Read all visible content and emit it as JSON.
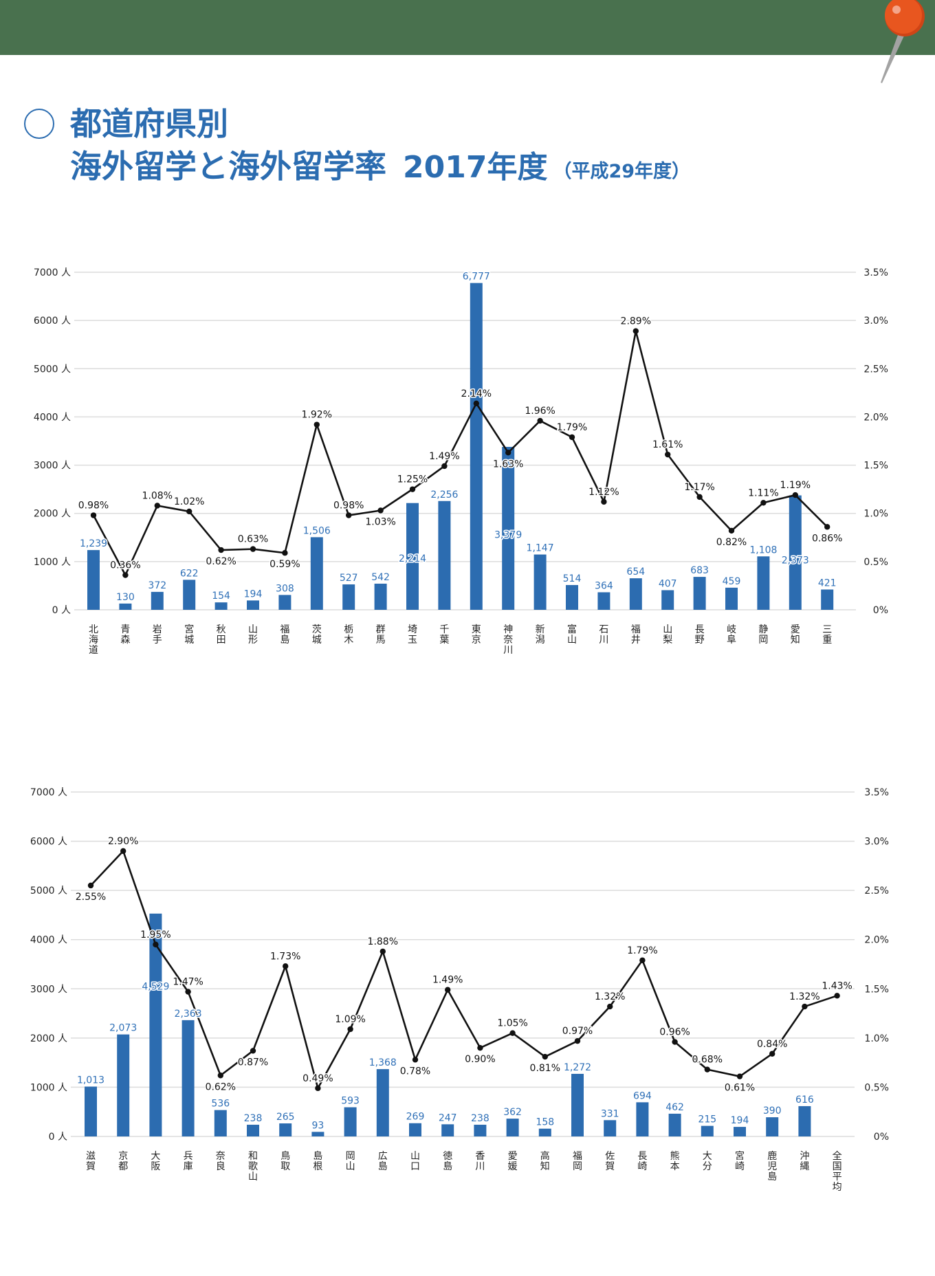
{
  "header": {
    "band_color": "#49714e"
  },
  "pin": {
    "icon": "pushpin-icon",
    "head_color": "#e8561f",
    "head_shadow_color": "#cf4416",
    "highlight_color": "#f4a58a",
    "needle_color": "#a3a3a3"
  },
  "title": {
    "bullet_icon": "circle-outline-icon",
    "line1": "都道府県別",
    "line2_main": "海外留学と海外留学率",
    "line2_year": "2017年度",
    "line2_sub": "（平成29年度）",
    "color": "#2b6cb0"
  },
  "colors": {
    "bar": "#2c6cb0",
    "bar_label": "#2f70b7",
    "line": "#111111",
    "grid": "#dcdcdc"
  },
  "chart_data": [
    {
      "type": "bar+line",
      "title": "都道府県別 海外留学と海外留学率 2017年度（平成29年度）",
      "xlabel": "",
      "ylabel": "",
      "grid": true,
      "legend": null,
      "categories": [
        "北海道",
        "青森",
        "岩手",
        "宮城",
        "秋田",
        "山形",
        "福島",
        "茨城",
        "栃木",
        "群馬",
        "埼玉",
        "千葉",
        "東京",
        "神奈川",
        "新潟",
        "富山",
        "石川",
        "福井",
        "山梨",
        "長野",
        "岐阜",
        "静岡",
        "愛知",
        "三重"
      ],
      "series": [
        {
          "type": "bar",
          "axis": "left",
          "unit": "人",
          "values": [
            1239,
            130,
            372,
            622,
            154,
            194,
            308,
            1506,
            527,
            542,
            2214,
            2256,
            6777,
            3379,
            1147,
            514,
            364,
            654,
            407,
            683,
            459,
            1108,
            2373,
            421
          ],
          "labels": [
            "1,239",
            "130",
            "372",
            "622",
            "154",
            "194",
            "308",
            "1,506",
            "527",
            "542",
            "2,214",
            "2,256",
            "6,777",
            "3,379",
            "1,147",
            "514",
            "364",
            "654",
            "407",
            "683",
            "459",
            "1,108",
            "2,373",
            "421"
          ],
          "label_inside_at": {
            "10": 1070,
            "13": 1560,
            "22": 1035
          }
        },
        {
          "type": "line",
          "axis": "right",
          "unit": "%",
          "values": [
            0.98,
            0.36,
            1.08,
            1.02,
            0.62,
            0.63,
            0.59,
            1.92,
            0.98,
            1.03,
            1.25,
            1.49,
            2.14,
            1.63,
            1.96,
            1.79,
            1.12,
            2.89,
            1.61,
            1.17,
            0.82,
            1.11,
            1.19,
            0.86
          ],
          "labels": [
            "0.98%",
            "0.36%",
            "1.08%",
            "1.02%",
            "0.62%",
            "0.63%",
            "0.59%",
            "1.92%",
            "0.98%",
            "1.03%",
            "1.25%",
            "1.49%",
            "2.14%",
            "1.63%",
            "1.96%",
            "1.79%",
            "1.12%",
            "2.89%",
            "1.61%",
            "1.17%",
            "0.82%",
            "1.11%",
            "1.19%",
            "0.86%"
          ],
          "label_positions": [
            "above",
            "above",
            "above",
            "above",
            "below",
            "above",
            "below",
            "above",
            "above",
            "below",
            "above",
            "above",
            "above",
            "below",
            "above",
            "above",
            "above",
            "above",
            "above",
            "above",
            "below",
            "above",
            "above",
            "below"
          ]
        }
      ],
      "y_left": {
        "min": 0,
        "max": 7000,
        "ticks": [
          0,
          1000,
          2000,
          3000,
          4000,
          5000,
          6000,
          7000
        ],
        "tick_labels": [
          "0 人",
          "1000 人",
          "2000 人",
          "3000 人",
          "4000 人",
          "5000 人",
          "6000 人",
          "7000 人"
        ]
      },
      "y_right": {
        "min": 0,
        "max": 3.5,
        "ticks": [
          0,
          0.5,
          1.0,
          1.5,
          2.0,
          2.5,
          3.0,
          3.5
        ],
        "tick_labels": [
          "0%",
          "0.5%",
          "1.0%",
          "1.5%",
          "2.0%",
          "2.5%",
          "3.0%",
          "3.5%"
        ]
      }
    },
    {
      "type": "bar+line",
      "title": "都道府県別 海外留学と海外留学率 2017年度（平成29年度）",
      "xlabel": "",
      "ylabel": "",
      "grid": true,
      "legend": null,
      "categories": [
        "滋賀",
        "京都",
        "大阪",
        "兵庫",
        "奈良",
        "和歌山",
        "鳥取",
        "島根",
        "岡山",
        "広島",
        "山口",
        "徳島",
        "香川",
        "愛媛",
        "高知",
        "福岡",
        "佐賀",
        "長崎",
        "熊本",
        "大分",
        "宮崎",
        "鹿児島",
        "沖縄",
        "全国平均"
      ],
      "series": [
        {
          "type": "bar",
          "axis": "left",
          "unit": "人",
          "values": [
            1013,
            2073,
            4529,
            2363,
            536,
            238,
            265,
            93,
            593,
            1368,
            269,
            247,
            238,
            362,
            158,
            1272,
            331,
            694,
            462,
            215,
            194,
            390,
            616,
            null
          ],
          "labels": [
            "1,013",
            "2,073",
            "4,529",
            "2,363",
            "536",
            "238",
            "265",
            "93",
            "593",
            "1,368",
            "269",
            "247",
            "238",
            "362",
            "158",
            "1,272",
            "331",
            "694",
            "462",
            "215",
            "194",
            "390",
            "616",
            null
          ],
          "label_inside_at": {
            "2": 3050
          }
        },
        {
          "type": "line",
          "axis": "right",
          "unit": "%",
          "values": [
            2.55,
            2.9,
            1.95,
            1.47,
            0.62,
            0.87,
            1.73,
            0.49,
            1.09,
            1.88,
            0.78,
            1.49,
            0.9,
            1.05,
            0.81,
            0.97,
            1.32,
            1.79,
            0.96,
            0.68,
            0.61,
            0.84,
            1.32,
            1.43
          ],
          "labels": [
            "2.55%",
            "2.90%",
            "1.95%",
            "1.47%",
            "0.62%",
            "0.87%",
            "1.73%",
            "0.49%",
            "1.09%",
            "1.88%",
            "0.78%",
            "1.49%",
            "0.90%",
            "1.05%",
            "0.81%",
            "0.97%",
            "1.32%",
            "1.79%",
            "0.96%",
            "0.68%",
            "0.61%",
            "0.84%",
            "1.32%",
            "1.43%"
          ],
          "label_positions": [
            "below",
            "above",
            "above",
            "above",
            "below",
            "below",
            "above",
            "above",
            "above",
            "above",
            "below",
            "above",
            "below",
            "above",
            "below",
            "above",
            "above",
            "above",
            "above",
            "above",
            "below",
            "above",
            "above",
            "above"
          ]
        }
      ],
      "y_left": {
        "min": 0,
        "max": 7000,
        "ticks": [
          0,
          1000,
          2000,
          3000,
          4000,
          5000,
          6000,
          7000
        ],
        "tick_labels": [
          "0 人",
          "1000 人",
          "2000 人",
          "3000 人",
          "4000 人",
          "5000 人",
          "6000 人",
          "7000 人"
        ]
      },
      "y_right": {
        "min": 0,
        "max": 3.5,
        "ticks": [
          0,
          0.5,
          1.0,
          1.5,
          2.0,
          2.5,
          3.0,
          3.5
        ],
        "tick_labels": [
          "0%",
          "0.5%",
          "1.0%",
          "1.5%",
          "2.0%",
          "2.5%",
          "3.0%",
          "3.5%"
        ]
      }
    }
  ]
}
